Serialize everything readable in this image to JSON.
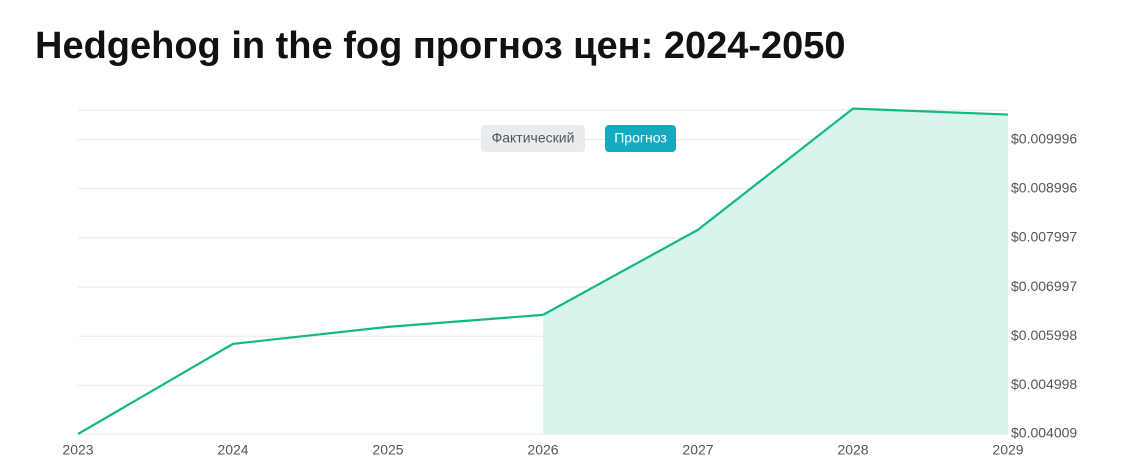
{
  "chart_data": {
    "type": "line",
    "title": "Hedgehog in the fog прогноз цен: 2024-2050",
    "x": [
      2023,
      2024,
      2025,
      2026,
      2027,
      2028,
      2029
    ],
    "xlim": [
      2023,
      2029
    ],
    "xticks": [
      2023,
      2024,
      2025,
      2026,
      2027,
      2028,
      2029
    ],
    "ylim": [
      0.004009,
      0.0107
    ],
    "yticks": [
      {
        "value": 0.004009,
        "label": "$0.004009"
      },
      {
        "value": 0.004998,
        "label": "$0.004998"
      },
      {
        "value": 0.005998,
        "label": "$0.005998"
      },
      {
        "value": 0.006997,
        "label": "$0.006997"
      },
      {
        "value": 0.007997,
        "label": "$0.007997"
      },
      {
        "value": 0.008996,
        "label": "$0.008996"
      },
      {
        "value": 0.009996,
        "label": "$0.009996"
      }
    ],
    "y_axis_side": "right",
    "grid": true,
    "series": [
      {
        "name": "Фактический",
        "color": "#12b886",
        "area": false,
        "legend_color": "#e9ecef",
        "values": [
          0.004009,
          0.005842,
          0.006188,
          0.006432,
          null,
          null,
          null
        ]
      },
      {
        "name": "Прогноз",
        "color": "#12b886",
        "area": true,
        "area_color": "#d9f4ec",
        "legend_color": "#15aabf",
        "values": [
          null,
          null,
          null,
          0.006432,
          0.008163,
          0.010627,
          0.010505
        ]
      }
    ]
  }
}
